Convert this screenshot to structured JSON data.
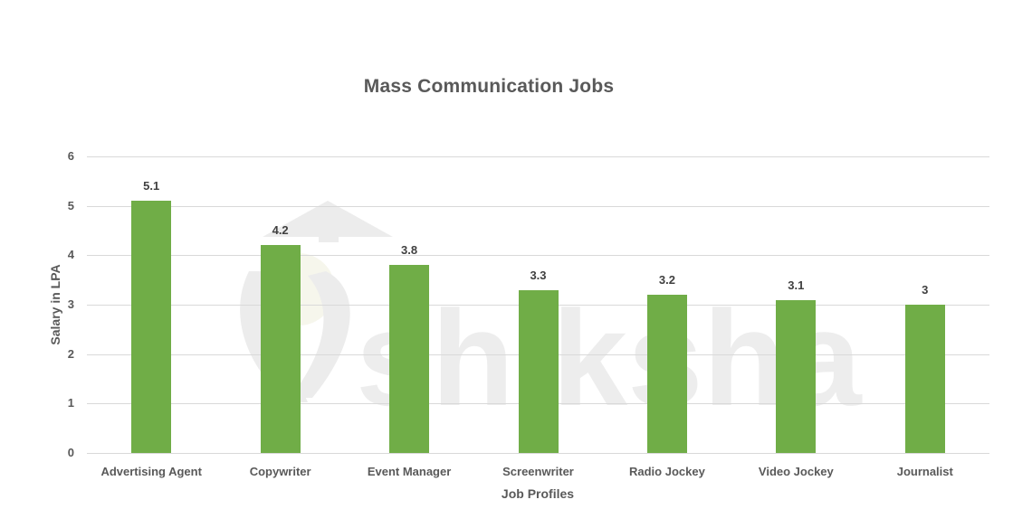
{
  "chart_data": {
    "type": "bar",
    "title": "Mass Communication Jobs",
    "xlabel": "Job Profiles",
    "ylabel": "Salary in LPA",
    "categories": [
      "Advertising Agent",
      "Copywriter",
      "Event Manager",
      "Screenwriter",
      "Radio Jockey",
      "Video Jockey",
      "Journalist"
    ],
    "values": [
      5.1,
      4.2,
      3.8,
      3.3,
      3.2,
      3.1,
      3
    ],
    "data_labels": [
      "5.1",
      "4.2",
      "3.8",
      "3.3",
      "3.2",
      "3.1",
      "3"
    ],
    "ylim": [
      0,
      6
    ],
    "yticks": [
      "0",
      "1",
      "2",
      "3",
      "4",
      "5",
      "6"
    ],
    "grid": true,
    "legend": "none",
    "bar_color": "#70ad47"
  },
  "watermark": {
    "text": "shiksha",
    "icon": "graduation-cap-logo-icon"
  }
}
